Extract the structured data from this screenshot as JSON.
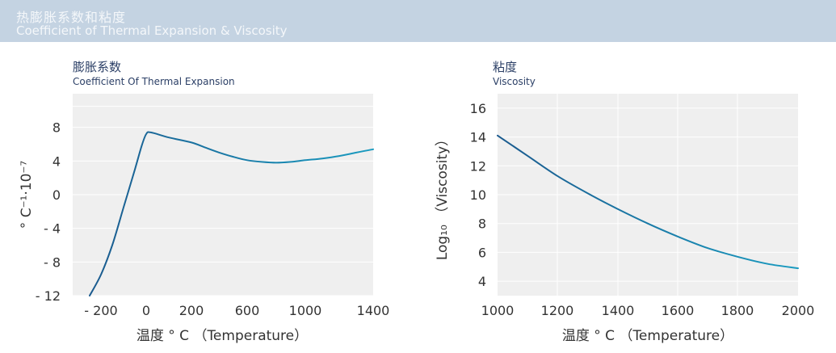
{
  "header": {
    "title_cn": "热膨胀系数和粘度",
    "title_en": "Coefficient of Thermal Expansion & Viscosity"
  },
  "colors": {
    "banner": "#c4d3e2",
    "plot_bg": "#efefef",
    "grid": "#ffffff",
    "line_start": "#1a5a8e",
    "line_end": "#1a9bc0",
    "text": "#2b3f66"
  },
  "chart_data": [
    {
      "type": "line",
      "title": "膨胀系数",
      "subtitle": "Coefficient  Of  Thermal  Expansion",
      "xlabel": "温度 ° C （Temperature）",
      "ylabel": "° C⁻¹·10⁻⁷",
      "xticks": [
        -200,
        0,
        200,
        600,
        1000,
        1400
      ],
      "xtick_labels": [
        "- 200",
        "0",
        "200",
        "600",
        "1000",
        "1400"
      ],
      "yticks": [
        -12,
        -8,
        -4,
        0,
        4,
        8
      ],
      "ytick_labels": [
        "- 12",
        "- 8",
        "- 4",
        "0",
        "4",
        "8"
      ],
      "ylim": [
        -12,
        12
      ],
      "grid": true,
      "series": [
        {
          "x": [
            -250,
            -200,
            -150,
            -100,
            -50,
            -20,
            0,
            20,
            100,
            200,
            300,
            400,
            500,
            600,
            700,
            800,
            900,
            1000,
            1100,
            1200,
            1300,
            1400
          ],
          "y": [
            -12,
            -9.5,
            -6,
            -1.5,
            3,
            5.8,
            7.2,
            7.4,
            6.8,
            6.2,
            5.6,
            5.0,
            4.5,
            4.1,
            3.9,
            3.8,
            3.9,
            4.1,
            4.3,
            4.6,
            5.0,
            5.4
          ]
        }
      ]
    },
    {
      "type": "line",
      "title": "粘度",
      "subtitle": "Viscosity",
      "xlabel": "温度 ° C （Temperature）",
      "ylabel": "Log₁₀ （Viscosity）",
      "xticks": [
        1000,
        1200,
        1400,
        1600,
        1800,
        2000
      ],
      "xtick_labels": [
        "1000",
        "1200",
        "1400",
        "1600",
        "1800",
        "2000"
      ],
      "yticks": [
        4,
        6,
        8,
        10,
        12,
        14,
        16
      ],
      "ytick_labels": [
        "4",
        "6",
        "8",
        "10",
        "12",
        "14",
        "16"
      ],
      "xlim": [
        1000,
        2000
      ],
      "ylim": [
        3,
        17
      ],
      "grid": true,
      "series": [
        {
          "x": [
            1000,
            1100,
            1200,
            1300,
            1400,
            1500,
            1600,
            1700,
            1800,
            1900,
            2000
          ],
          "y": [
            14.1,
            12.7,
            11.3,
            10.1,
            9.0,
            8.0,
            7.1,
            6.3,
            5.7,
            5.2,
            4.9
          ]
        }
      ]
    }
  ]
}
